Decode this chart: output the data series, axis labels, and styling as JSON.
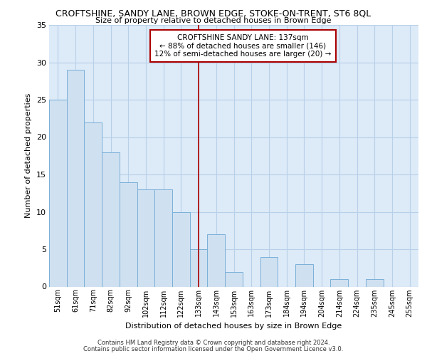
{
  "title1": "CROFTSHINE, SANDY LANE, BROWN EDGE, STOKE-ON-TRENT, ST6 8QL",
  "title2": "Size of property relative to detached houses in Brown Edge",
  "xlabel": "Distribution of detached houses by size in Brown Edge",
  "ylabel": "Number of detached properties",
  "categories": [
    "51sqm",
    "61sqm",
    "71sqm",
    "82sqm",
    "92sqm",
    "102sqm",
    "112sqm",
    "122sqm",
    "133sqm",
    "143sqm",
    "153sqm",
    "163sqm",
    "173sqm",
    "184sqm",
    "194sqm",
    "204sqm",
    "214sqm",
    "224sqm",
    "235sqm",
    "245sqm",
    "255sqm"
  ],
  "values": [
    25,
    29,
    22,
    18,
    14,
    13,
    13,
    10,
    5,
    7,
    2,
    0,
    4,
    0,
    3,
    0,
    1,
    0,
    1,
    0,
    0
  ],
  "bar_color": "#cfe0f0",
  "bar_edge_color": "#7ab0d8",
  "marker_index": 8,
  "marker_label": "CROFTSHINE SANDY LANE: 137sqm",
  "annotation_line1": "← 88% of detached houses are smaller (146)",
  "annotation_line2": "12% of semi-detached houses are larger (20) →",
  "marker_line_color": "#aa0000",
  "annotation_box_edge_color": "#aa0000",
  "ylim": [
    0,
    35
  ],
  "yticks": [
    0,
    5,
    10,
    15,
    20,
    25,
    30,
    35
  ],
  "grid_color": "#b8d0e8",
  "background_color": "#ddeaf8",
  "footer1": "Contains HM Land Registry data © Crown copyright and database right 2024.",
  "footer2": "Contains public sector information licensed under the Open Government Licence v3.0."
}
